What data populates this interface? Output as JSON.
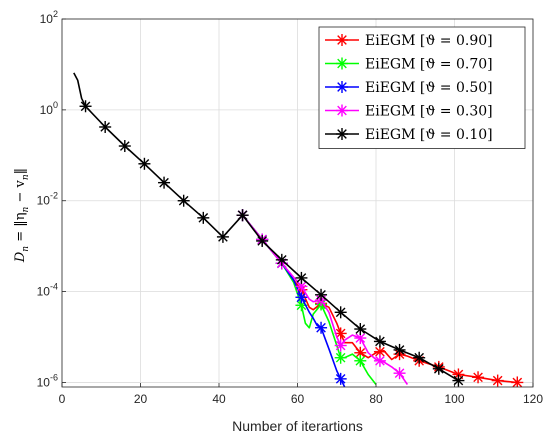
{
  "chart_data": {
    "type": "line",
    "title": "",
    "xlabel": "Number of iterartions",
    "ylabel_parts": {
      "lhs": "D",
      "sub": "n",
      "rhs": "= ‖η",
      "sub2": "n",
      "minus": "− v",
      "sub3": "n",
      "close": "‖"
    },
    "ylabel": "Dn = ||ηn - vn||",
    "yscale": "log",
    "xlim": [
      0,
      120
    ],
    "ylim_exp": [
      -6.1,
      2
    ],
    "xticks": [
      "0",
      "20",
      "40",
      "60",
      "80",
      "100",
      "120"
    ],
    "yticks": [
      {
        "base": "10",
        "exp": "2",
        "e": 2
      },
      {
        "base": "10",
        "exp": "0",
        "e": 0
      },
      {
        "base": "10",
        "exp": "-2",
        "e": -2
      },
      {
        "base": "10",
        "exp": "-4",
        "e": -4
      },
      {
        "base": "10",
        "exp": "-6",
        "e": -6
      }
    ],
    "grid": true,
    "legend_position": "top-right",
    "series": [
      {
        "name": "EiEGM [ϑ = 0.90]",
        "color": "#ff0000",
        "x": [
          46,
          51,
          56,
          59,
          61,
          62,
          63,
          64,
          66,
          68,
          70,
          71,
          72,
          74,
          76,
          78,
          80,
          82,
          84,
          86,
          88,
          91,
          96,
          101,
          106,
          111,
          116
        ],
        "y": [
          0.0048,
          0.0014,
          0.00042,
          0.00018,
          0.00011,
          7e-05,
          4.5e-05,
          4e-05,
          5.5e-05,
          4.5e-05,
          2e-05,
          1.2e-05,
          7.5e-06,
          7.5e-06,
          4.5e-06,
          3.5e-06,
          4.5e-06,
          5e-06,
          3.2e-06,
          4.2e-06,
          3.8e-06,
          3e-06,
          2.2e-06,
          1.5e-06,
          1.3e-06,
          1.1e-06,
          1e-06
        ],
        "markers_x": [
          46,
          51,
          56,
          61,
          66,
          71,
          76,
          81,
          86,
          91,
          96,
          101,
          106,
          111,
          116
        ]
      },
      {
        "name": "EiEGM [ϑ = 0.70]",
        "color": "#00ff00",
        "x": [
          46,
          51,
          56,
          59,
          61,
          62,
          63,
          64,
          66,
          68,
          70,
          71,
          72,
          74,
          76,
          78,
          80
        ],
        "y": [
          0.0048,
          0.0014,
          0.00042,
          0.00016,
          5e-05,
          2e-05,
          1.6e-05,
          3.2e-05,
          5.2e-05,
          2.2e-05,
          6.5e-06,
          3.5e-06,
          3.5e-06,
          4.2e-06,
          3e-06,
          1.5e-06,
          9e-07
        ],
        "markers_x": [
          46,
          51,
          56,
          61,
          66,
          71,
          76
        ]
      },
      {
        "name": "EiEGM [ϑ = 0.50]",
        "color": "#0000ff",
        "x": [
          46,
          51,
          56,
          59,
          61,
          63,
          64,
          65,
          66,
          68,
          70,
          72
        ],
        "y": [
          0.0048,
          0.0014,
          0.00042,
          0.00018,
          7.5e-05,
          3.5e-05,
          2.6e-05,
          1.8e-05,
          1.6e-05,
          5.5e-06,
          1.8e-06,
          8e-07
        ],
        "markers_x": [
          46,
          51,
          56,
          61,
          66,
          71
        ]
      },
      {
        "name": "EiEGM [ϑ = 0.30]",
        "color": "#ff00ff",
        "x": [
          46,
          51,
          56,
          61,
          63,
          64,
          66,
          68,
          70,
          71,
          72,
          74,
          76,
          78,
          80,
          82,
          84,
          86,
          88
        ],
        "y": [
          0.0048,
          0.0014,
          0.00042,
          0.00013,
          6.8e-05,
          6e-05,
          6.5e-05,
          3.5e-05,
          1e-05,
          6.5e-06,
          8.5e-06,
          1.1e-05,
          9.5e-06,
          4.5e-06,
          3.2e-06,
          2.8e-06,
          2.2e-06,
          1.6e-06,
          9e-07
        ],
        "markers_x": [
          46,
          51,
          56,
          61,
          66,
          71,
          76,
          81,
          86
        ]
      },
      {
        "name": "EiEGM [ϑ = 0.10]",
        "color": "#000000",
        "x": [
          3,
          4,
          5,
          6,
          11,
          16,
          21,
          26,
          31,
          36,
          41,
          46,
          51,
          56,
          61,
          66,
          71,
          76,
          81,
          86,
          91,
          96,
          101
        ],
        "y": [
          6.5,
          4.5,
          1.8,
          1.2,
          0.42,
          0.16,
          0.065,
          0.025,
          0.01,
          0.0042,
          0.0016,
          0.0048,
          0.0013,
          0.0005,
          0.0002,
          8.5e-05,
          3.5e-05,
          1.5e-05,
          8e-06,
          5.2e-06,
          3.5e-06,
          2e-06,
          1.1e-06
        ],
        "markers_x": [
          6,
          11,
          16,
          21,
          26,
          31,
          36,
          41,
          46,
          51,
          56,
          61,
          66,
          71,
          76,
          81,
          86,
          91,
          96,
          101
        ]
      }
    ]
  }
}
